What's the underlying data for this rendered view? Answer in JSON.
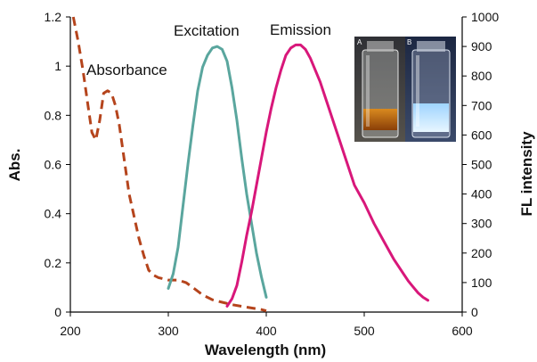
{
  "chart_data": {
    "type": "line",
    "xlabel": "Wavelength (nm)",
    "ylabel_left": "Abs.",
    "ylabel_right": "FL intensity",
    "xlim": [
      200,
      600
    ],
    "ylim_left": [
      0,
      1.2
    ],
    "ylim_right": [
      0,
      1000
    ],
    "x_ticks": [
      "200",
      "300",
      "400",
      "500",
      "600"
    ],
    "y_left_ticks": [
      "0",
      "0.2",
      "0.4",
      "0.6",
      "0.8",
      "1",
      "1.2"
    ],
    "y_right_ticks": [
      "0",
      "100",
      "200",
      "300",
      "400",
      "500",
      "600",
      "700",
      "800",
      "900",
      "1000"
    ],
    "grid": false,
    "series": [
      {
        "name": "Absorbance",
        "axis": "left",
        "color": "#b5441c",
        "style": "dashed",
        "points": [
          [
            203,
            1.2
          ],
          [
            208,
            1.1
          ],
          [
            213,
            0.98
          ],
          [
            218,
            0.84
          ],
          [
            222,
            0.73
          ],
          [
            226,
            0.7
          ],
          [
            230,
            0.78
          ],
          [
            234,
            0.89
          ],
          [
            238,
            0.9
          ],
          [
            242,
            0.89
          ],
          [
            246,
            0.84
          ],
          [
            250,
            0.76
          ],
          [
            255,
            0.62
          ],
          [
            260,
            0.48
          ],
          [
            265,
            0.39
          ],
          [
            270,
            0.3
          ],
          [
            275,
            0.23
          ],
          [
            280,
            0.17
          ],
          [
            285,
            0.15
          ],
          [
            290,
            0.14
          ],
          [
            300,
            0.13
          ],
          [
            310,
            0.13
          ],
          [
            318,
            0.12
          ],
          [
            325,
            0.1
          ],
          [
            335,
            0.07
          ],
          [
            345,
            0.05
          ],
          [
            355,
            0.04
          ],
          [
            365,
            0.03
          ],
          [
            380,
            0.02
          ],
          [
            395,
            0.01
          ],
          [
            400,
            0.005
          ]
        ]
      },
      {
        "name": "Excitation",
        "axis": "right",
        "color": "#5aa69e",
        "style": "solid",
        "points": [
          [
            300,
            80
          ],
          [
            305,
            130
          ],
          [
            310,
            220
          ],
          [
            315,
            360
          ],
          [
            320,
            500
          ],
          [
            325,
            630
          ],
          [
            330,
            750
          ],
          [
            335,
            830
          ],
          [
            340,
            870
          ],
          [
            345,
            895
          ],
          [
            350,
            900
          ],
          [
            355,
            890
          ],
          [
            360,
            850
          ],
          [
            365,
            760
          ],
          [
            370,
            650
          ],
          [
            375,
            520
          ],
          [
            380,
            400
          ],
          [
            385,
            300
          ],
          [
            390,
            200
          ],
          [
            395,
            120
          ],
          [
            400,
            50
          ]
        ]
      },
      {
        "name": "Emission",
        "axis": "right",
        "color": "#d8177a",
        "style": "solid",
        "points": [
          [
            360,
            20
          ],
          [
            365,
            45
          ],
          [
            370,
            90
          ],
          [
            375,
            170
          ],
          [
            380,
            260
          ],
          [
            385,
            340
          ],
          [
            390,
            430
          ],
          [
            395,
            520
          ],
          [
            400,
            610
          ],
          [
            405,
            690
          ],
          [
            410,
            760
          ],
          [
            415,
            820
          ],
          [
            420,
            870
          ],
          [
            425,
            895
          ],
          [
            430,
            905
          ],
          [
            435,
            905
          ],
          [
            440,
            890
          ],
          [
            445,
            860
          ],
          [
            450,
            820
          ],
          [
            455,
            780
          ],
          [
            460,
            730
          ],
          [
            465,
            680
          ],
          [
            470,
            630
          ],
          [
            475,
            580
          ],
          [
            480,
            530
          ],
          [
            485,
            480
          ],
          [
            490,
            430
          ],
          [
            495,
            400
          ],
          [
            500,
            370
          ],
          [
            505,
            335
          ],
          [
            510,
            300
          ],
          [
            515,
            270
          ],
          [
            520,
            240
          ],
          [
            525,
            210
          ],
          [
            530,
            180
          ],
          [
            535,
            155
          ],
          [
            540,
            130
          ],
          [
            545,
            105
          ],
          [
            550,
            85
          ],
          [
            555,
            65
          ],
          [
            560,
            50
          ],
          [
            565,
            40
          ]
        ]
      }
    ],
    "annotations": [
      {
        "text": "Absorbance"
      },
      {
        "text": "Excitation"
      },
      {
        "text": "Emission"
      }
    ],
    "inset": {
      "left_label": "A",
      "right_label": "B"
    }
  }
}
